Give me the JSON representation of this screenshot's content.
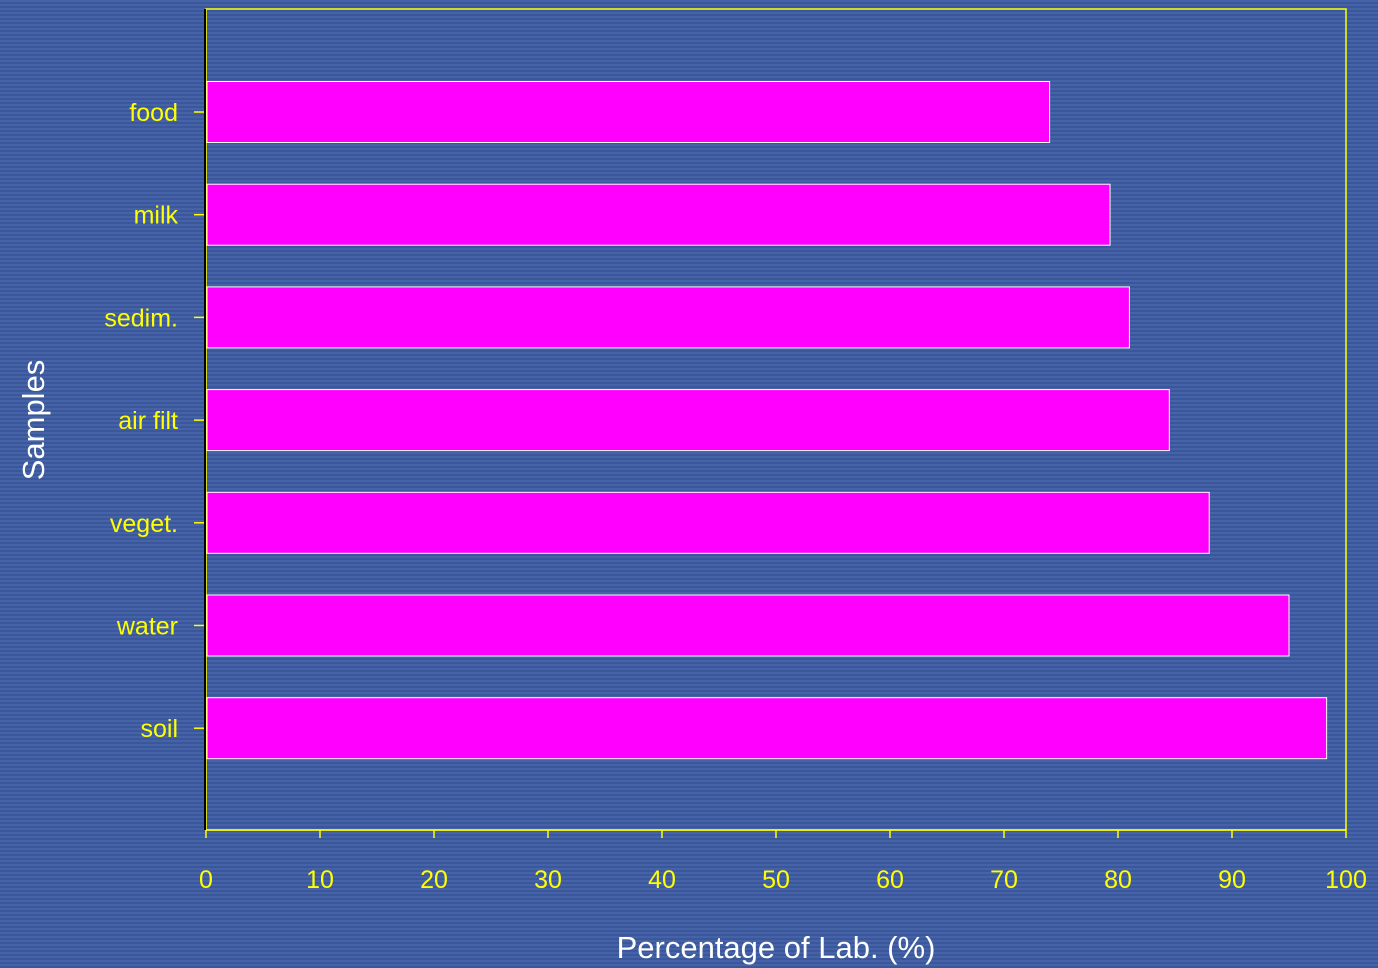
{
  "chart_data": {
    "type": "bar",
    "orientation": "horizontal",
    "categories": [
      "food",
      "milk",
      "sedim.",
      "air filt",
      "veget.",
      "water",
      "soil"
    ],
    "values": [
      74,
      79.3,
      81,
      84.5,
      88,
      95,
      98.3
    ],
    "xlabel": "Percentage of Lab. (%)",
    "ylabel": "Samples",
    "xlim": [
      0,
      100
    ],
    "xticks": [
      0,
      10,
      20,
      30,
      40,
      50,
      60,
      70,
      80,
      90,
      100
    ],
    "grid": false,
    "legend": "none",
    "colors": {
      "background": "#3d5a9e",
      "bar_fill": "#ff00ff",
      "bar_stroke": "#ffffff",
      "frame": "#ffff00",
      "tick_text": "#ffff00",
      "axis_title": "#ffffff"
    }
  }
}
